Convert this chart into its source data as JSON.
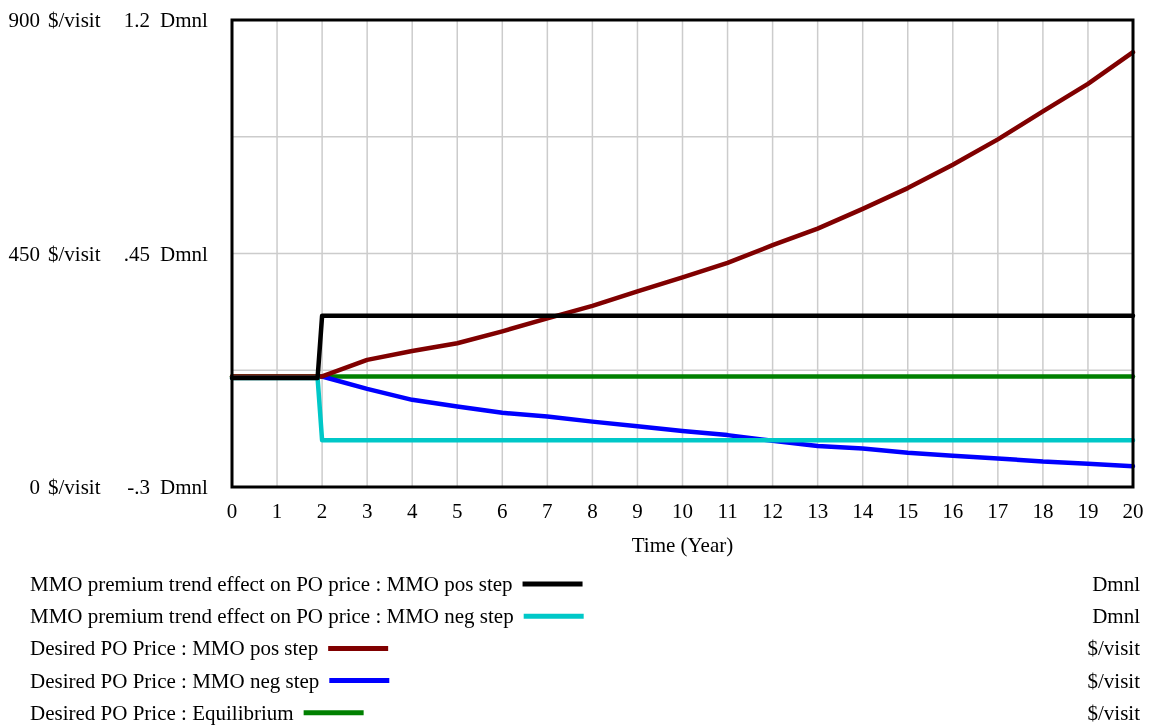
{
  "chart_data": {
    "type": "line",
    "xlabel": "Time (Year)",
    "ylabel": "Dmnl",
    "y2label": "$/visit",
    "x": [
      0,
      1,
      2,
      3,
      4,
      5,
      6,
      7,
      8,
      9,
      10,
      11,
      12,
      13,
      14,
      15,
      16,
      17,
      18,
      19,
      20
    ],
    "xlim": [
      0,
      20
    ],
    "xticks": [
      0,
      1,
      2,
      3,
      4,
      5,
      6,
      7,
      8,
      9,
      10,
      11,
      12,
      13,
      14,
      15,
      16,
      17,
      18,
      19,
      20
    ],
    "ylim": [
      -0.3,
      1.2
    ],
    "yticks": [
      {
        "value": -0.3,
        "label": "-.3"
      },
      {
        "value": 0.075,
        "label": null
      },
      {
        "value": 0.45,
        "label": ".45"
      },
      {
        "value": 0.825,
        "label": null
      },
      1.2
    ],
    "y2lim": [
      0,
      900
    ],
    "y2ticks": [
      0,
      450,
      900
    ],
    "grid": true,
    "legend": "bottom",
    "line_style": "solid",
    "marker": "none",
    "series": [
      {
        "name": "MMO premium trend effect on PO price : MMO pos step",
        "color": "#000000",
        "x": [
          0,
          1.9,
          2,
          20
        ],
        "values": [
          0.05,
          0.05,
          0.25,
          0.25
        ]
      },
      {
        "name": "MMO premium trend effect on PO price : MMO neg step",
        "color": "#00c8c8",
        "x": [
          0,
          1.9,
          2,
          20
        ],
        "values": [
          0.05,
          0.05,
          -0.15,
          -0.15
        ]
      },
      {
        "name": "Desired PO Price : MMO pos step",
        "color": "#800000",
        "axis": "y2",
        "values": [
          213,
          213,
          213,
          245,
          262,
          277,
          300,
          325,
          349,
          377,
          404,
          432,
          466,
          498,
          536,
          576,
          621,
          670,
          724,
          777,
          838
        ]
      },
      {
        "name": "Desired PO Price : MMO neg step",
        "color": "#0000ff",
        "axis": "y2",
        "values": [
          null,
          null,
          213,
          189,
          168,
          155,
          143,
          136,
          126,
          117,
          108,
          100,
          89,
          79,
          74,
          66,
          60,
          55,
          49,
          45,
          40
        ]
      },
      {
        "name": "Desired PO Price : Equilibrium",
        "color": "#008000",
        "axis": "y2",
        "x": [
          0,
          20
        ],
        "values": [
          213,
          213
        ]
      }
    ]
  }
}
